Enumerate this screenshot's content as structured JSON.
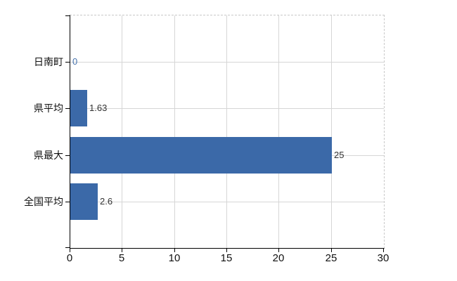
{
  "chart_data": {
    "type": "bar",
    "orientation": "horizontal",
    "title": "",
    "categories": [
      "日南町",
      "県平均",
      "県最大",
      "全国平均"
    ],
    "values": [
      0,
      1.63,
      25,
      2.6
    ],
    "value_labels": [
      "0",
      "1.63",
      "25",
      "2.6"
    ],
    "value_label_colors": [
      "#4673ad",
      "#333333",
      "#333333",
      "#333333"
    ],
    "xlim": [
      0,
      30
    ],
    "xticks": [
      "0",
      "5",
      "10",
      "15",
      "20",
      "25",
      "30"
    ],
    "grid": true,
    "legend": false,
    "colors": {
      "bar": "#3b69a8",
      "grid": "#d6d6d6",
      "dashed_border": "#c9c9c9",
      "axis": "#000000",
      "background": "#ffffff"
    }
  }
}
